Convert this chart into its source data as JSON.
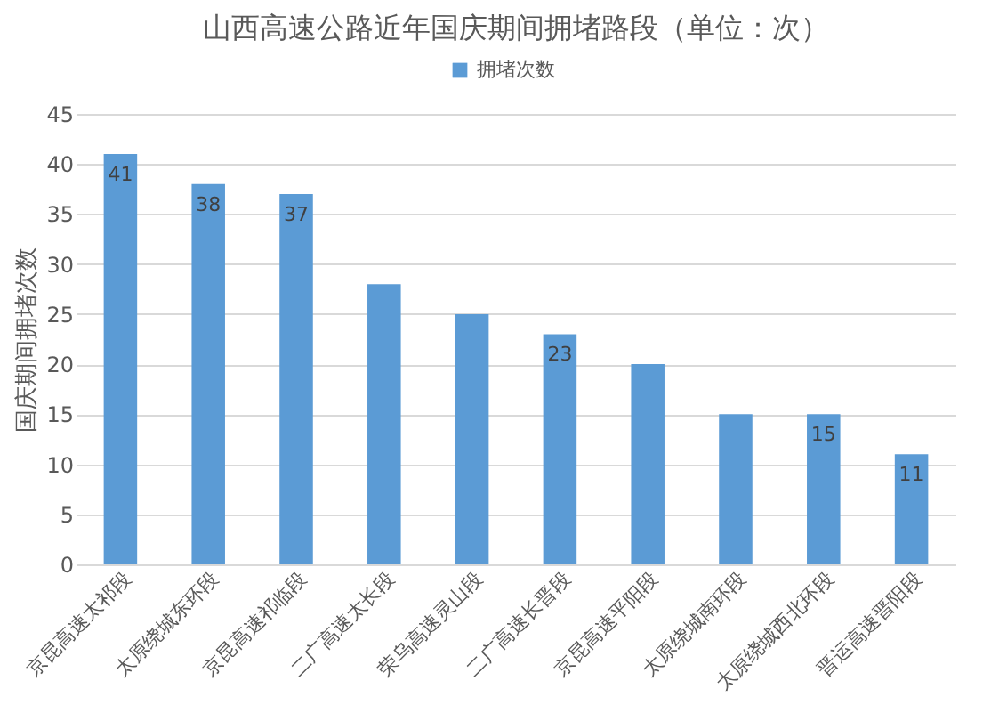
{
  "chart_data": {
    "type": "bar",
    "title": "山西高速公路近年国庆期间拥堵路段（单位：次）",
    "ylabel": "国庆期间拥堵次数",
    "categories": [
      "京昆高速太祁段",
      "太原绕城东环段",
      "京昆高速祁临段",
      "二广高速太长段",
      "荣乌高速灵山段",
      "二广高速长晋段",
      "京昆高速平阳段",
      "太原绕城南环段",
      "太原绕城西北环段",
      "晋运高速晋阳段"
    ],
    "series": [
      {
        "name": "拥堵次数",
        "color": "#5b9bd5",
        "values": [
          41,
          38,
          37,
          28,
          25,
          23,
          20,
          15,
          15,
          11
        ]
      }
    ],
    "value_labels": [
      "41",
      "38",
      "37",
      null,
      null,
      "23",
      null,
      null,
      "15",
      "11"
    ],
    "ylim": [
      0,
      45
    ],
    "yticks": [
      0,
      5,
      10,
      15,
      20,
      25,
      30,
      35,
      40,
      45
    ],
    "grid": "y",
    "legend": "top"
  }
}
